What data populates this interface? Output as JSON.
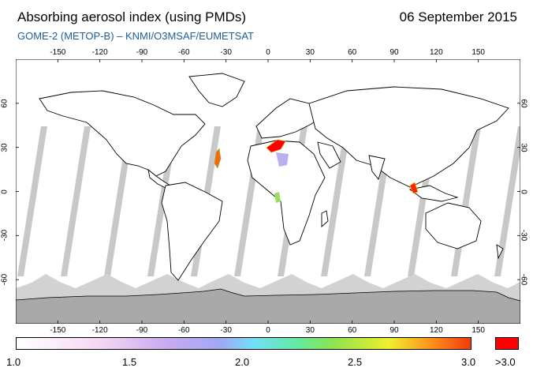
{
  "header": {
    "title": "Absorbing aerosol index (using PMDs)",
    "date": "06 September 2015",
    "subtitle": "GOME-2 (METOP-B)  –  KNMI/O3MSAF/EUMETSAT"
  },
  "map": {
    "lon_ticks": [
      "-150",
      "-120",
      "-90",
      "-60",
      "-30",
      "0",
      "30",
      "60",
      "90",
      "120",
      "150"
    ],
    "lon_values": [
      -150,
      -120,
      -90,
      -60,
      -30,
      0,
      30,
      60,
      90,
      120,
      150
    ],
    "lat_ticks": [
      "60",
      "30",
      "0",
      "-30",
      "-60"
    ],
    "lat_values": [
      60,
      30,
      0,
      -30,
      -60
    ],
    "lon_range": [
      -180,
      180
    ],
    "lat_range": [
      -90,
      90
    ],
    "colors": {
      "land_outline": "#000000",
      "no_data": "#c8c8c8",
      "antarctica": "#a8a8a8",
      "high_value": "#ff0000"
    }
  },
  "colorbar": {
    "labels": [
      "1.0",
      "1.5",
      "2.0",
      "2.5",
      "3.0"
    ],
    "overflow_label": ">3.0",
    "range": [
      1.0,
      3.0
    ]
  }
}
